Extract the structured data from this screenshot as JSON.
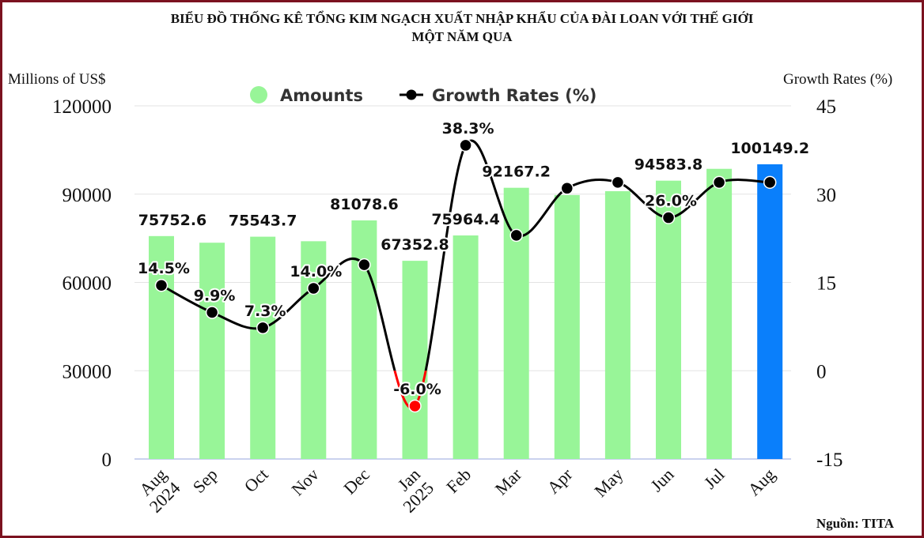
{
  "chart_data": {
    "type": "bar+line",
    "title_lines": [
      "BIỂU ĐỒ THỐNG KÊ TỔNG KIM NGẠCH XUẤT NHẬP KHẨU CỦA ĐÀI LOAN VỚI THẾ GIỚI",
      "MỘT NĂM QUA"
    ],
    "ylabel_left": "Millions of US$",
    "ylabel_right": "Growth Rates (%)",
    "source": "Nguồn: TITA",
    "categories": [
      "Aug",
      "Sep",
      "Oct",
      "Nov",
      "Dec",
      "Jan",
      "Feb",
      "Mar",
      "Apr",
      "May",
      "Jun",
      "Jul",
      "Aug"
    ],
    "category_sublabels": [
      "2024",
      "",
      "",
      "",
      "",
      "2025",
      "",
      "",
      "",
      "",
      "",
      "",
      ""
    ],
    "ylim_left": [
      0,
      120000
    ],
    "yticks_left": [
      "0",
      "30000",
      "60000",
      "90000",
      "120000"
    ],
    "ylim_right": [
      -15,
      45
    ],
    "yticks_right": [
      "-15",
      "0",
      "15",
      "30",
      "45"
    ],
    "grid": true,
    "legend_position": "top",
    "series": [
      {
        "name": "Amounts",
        "type": "bar",
        "axis": "left",
        "color": "#98f598",
        "highlight_color": "#0a7ffb",
        "highlight_index": 12,
        "values": [
          75752.6,
          73500,
          75543.7,
          74000,
          81078.6,
          67352.8,
          75964.4,
          92167.2,
          89700,
          91000,
          94583.8,
          98600,
          100149.2
        ],
        "labels": [
          "75752.6",
          "",
          "75543.7",
          "",
          "81078.6",
          "67352.8",
          "75964.4",
          "92167.2",
          "",
          "",
          "94583.8",
          "",
          "100149.2"
        ]
      },
      {
        "name": "Growth Rates (%)",
        "type": "line",
        "axis": "right",
        "color": "#000000",
        "negative_color": "#ff0000",
        "values": [
          14.5,
          9.9,
          7.3,
          14.0,
          18.0,
          -6.0,
          38.3,
          23.0,
          31.0,
          32.0,
          26.0,
          32.0,
          32.0
        ],
        "labels": [
          "14.5%",
          "9.9%",
          "7.3%",
          "14.0%",
          "",
          "-6.0%",
          "38.3%",
          "",
          "",
          "",
          "26.0%",
          "",
          ""
        ]
      }
    ]
  }
}
